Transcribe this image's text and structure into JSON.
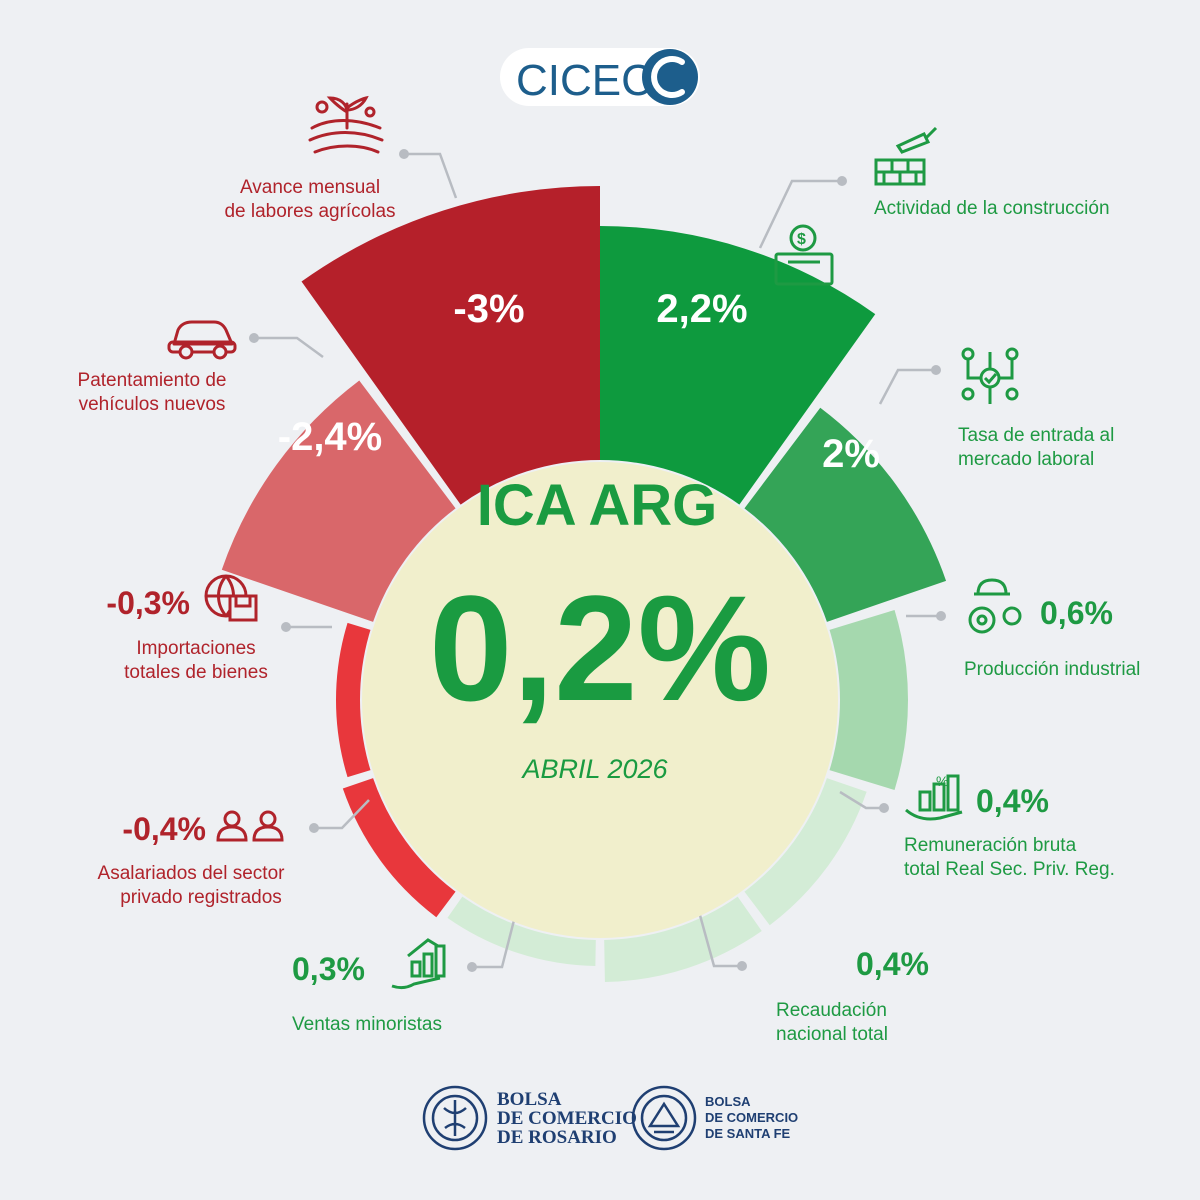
{
  "logo": {
    "text": "CICEC"
  },
  "chart_data": {
    "type": "radial-bar",
    "title": "ICA ARG",
    "value": "0,2%",
    "period": "ABRIL 2026",
    "series": [
      {
        "label": "Actividad de la construcción",
        "display": "2,2%",
        "value": 2.2
      },
      {
        "label": "Tasa de entrada al mercado laboral",
        "display": "2%",
        "value": 2.0
      },
      {
        "label": "Producción industrial",
        "display": "0,6%",
        "value": 0.6
      },
      {
        "label": "Remuneración bruta total Real Sec. Priv. Reg.",
        "display": "0,4%",
        "value": 0.4
      },
      {
        "label": "Recaudación nacional total",
        "display": "0,4%",
        "value": 0.4
      },
      {
        "label": "Ventas minoristas",
        "display": "0,3%",
        "value": 0.3
      },
      {
        "label": "Asalariados del sector privado registrados",
        "display": "-0,4%",
        "value": -0.4
      },
      {
        "label": "Importaciones totales de bienes",
        "display": "-0,3%",
        "value": -0.3
      },
      {
        "label": "Patentamiento de vehículos nuevos",
        "display": "-2,4%",
        "value": -2.4
      },
      {
        "label": "Avance mensual de labores agrícolas",
        "display": "-3%",
        "value": -3.0
      }
    ],
    "colors": {
      "positive_strong": "#0e9a3e",
      "positive_mid": "#34a457",
      "positive_light": "#a5d8ae",
      "positive_pale": "#d3ecd6",
      "negative_strong": "#b5202a",
      "negative_mid": "#d9676a",
      "negative_bright": "#e8373c",
      "center": "#f1efcc"
    }
  },
  "labels": {
    "construccion": [
      "Actividad de la construcción"
    ],
    "laboral": [
      "Tasa de entrada al",
      "mercado laboral"
    ],
    "industrial": [
      "Producción industrial"
    ],
    "remuneracion": [
      "Remuneración bruta",
      "total Real Sec. Priv. Reg."
    ],
    "recaudacion": [
      "Recaudación",
      "nacional total"
    ],
    "minoristas": [
      "Ventas minoristas"
    ],
    "asalariados": [
      "Asalariados del sector",
      "privado registrados"
    ],
    "importaciones": [
      "Importaciones",
      "totales de bienes"
    ],
    "patentamiento": [
      "Patentamiento de",
      "vehículos nuevos"
    ],
    "agricolas": [
      "Avance mensual",
      "de labores agrícolas"
    ]
  },
  "footer": {
    "bcr": [
      "BOLSA",
      "DE COMERCIO",
      "DE ROSARIO"
    ],
    "bcsf": [
      "BOLSA",
      "DE COMERCIO",
      "DE SANTA FE"
    ]
  }
}
